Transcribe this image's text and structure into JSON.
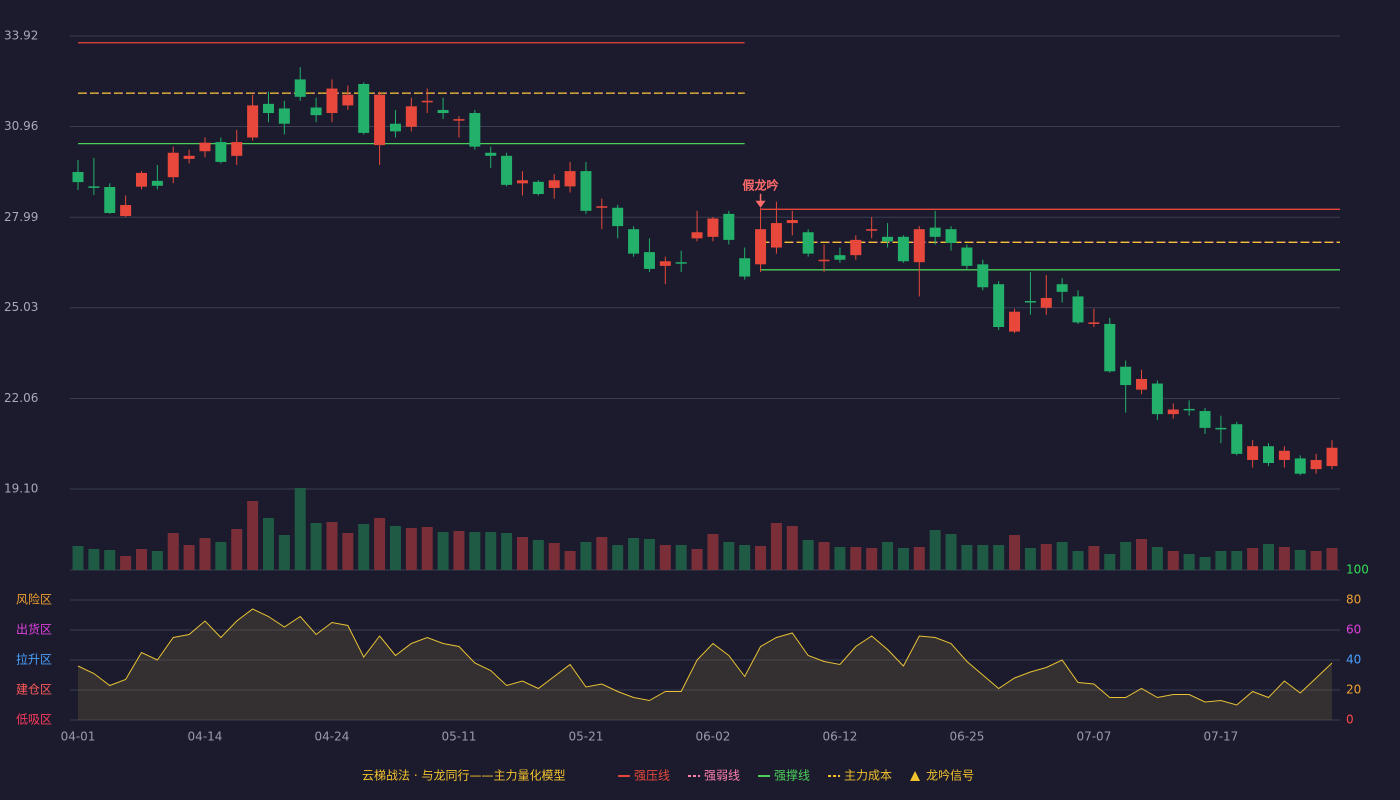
{
  "chart_data": {
    "type": "candlestick",
    "categories": [
      "04-01",
      null,
      null,
      null,
      null,
      null,
      null,
      null,
      "04-14",
      null,
      null,
      null,
      null,
      null,
      null,
      null,
      "04-24",
      null,
      null,
      null,
      null,
      null,
      null,
      null,
      "05-11",
      null,
      null,
      null,
      null,
      null,
      null,
      null,
      "05-21",
      null,
      null,
      null,
      null,
      null,
      null,
      null,
      "06-02",
      null,
      null,
      null,
      null,
      null,
      null,
      null,
      "06-12",
      null,
      null,
      null,
      null,
      null,
      null,
      null,
      "06-25",
      null,
      null,
      null,
      null,
      null,
      null,
      null,
      "07-07",
      null,
      null,
      null,
      null,
      null,
      null,
      null,
      "07-17",
      null,
      null,
      null,
      null,
      null,
      null,
      null
    ],
    "open": [
      29.47,
      29.0,
      28.98,
      28.03,
      28.99,
      29.18,
      29.3,
      29.9,
      30.15,
      30.45,
      30.0,
      30.6,
      31.7,
      31.55,
      32.5,
      31.58,
      31.4,
      31.65,
      32.35,
      30.35,
      31.05,
      30.95,
      31.75,
      31.5,
      31.15,
      31.4,
      30.1,
      30.0,
      29.1,
      29.15,
      28.95,
      29.0,
      29.5,
      28.3,
      28.3,
      27.6,
      26.85,
      26.4,
      26.52,
      27.3,
      27.35,
      28.1,
      26.65,
      26.45,
      27.0,
      27.8,
      27.5,
      26.58,
      26.75,
      26.75,
      27.55,
      27.35,
      27.35,
      26.52,
      27.65,
      27.6,
      27.0,
      26.45,
      25.8,
      24.25,
      25.25,
      25.03,
      25.8,
      25.4,
      24.5,
      24.5,
      23.1,
      22.35,
      22.55,
      21.55,
      21.72,
      21.65,
      21.1,
      21.22,
      20.05,
      20.5,
      20.05,
      20.1,
      19.75,
      19.85
    ],
    "close": [
      29.14,
      28.97,
      28.13,
      28.39,
      29.44,
      29.02,
      30.1,
      30.0,
      30.43,
      29.8,
      30.45,
      31.65,
      31.4,
      31.05,
      31.93,
      31.33,
      32.2,
      32.0,
      30.75,
      32.0,
      30.8,
      31.62,
      31.8,
      31.4,
      31.2,
      30.3,
      30.0,
      29.05,
      29.2,
      28.75,
      29.2,
      29.5,
      28.2,
      28.35,
      27.7,
      26.8,
      26.3,
      26.55,
      26.5,
      27.5,
      27.95,
      27.25,
      26.05,
      27.6,
      27.8,
      27.9,
      26.8,
      26.6,
      26.6,
      27.25,
      27.6,
      27.2,
      26.55,
      27.6,
      27.35,
      27.15,
      26.4,
      25.7,
      24.4,
      24.9,
      25.22,
      25.35,
      25.55,
      24.55,
      24.55,
      22.95,
      22.5,
      22.7,
      21.55,
      21.7,
      21.68,
      21.1,
      21.08,
      20.25,
      20.5,
      19.95,
      20.35,
      19.6,
      20.05,
      20.45
    ],
    "high": [
      29.86,
      29.93,
      29.1,
      28.7,
      29.5,
      29.7,
      30.3,
      30.2,
      30.6,
      30.6,
      30.85,
      32.0,
      32.1,
      31.8,
      32.9,
      31.9,
      32.5,
      32.3,
      32.4,
      32.1,
      31.5,
      31.9,
      32.2,
      31.9,
      31.3,
      31.5,
      30.3,
      30.1,
      29.5,
      29.2,
      29.4,
      29.8,
      29.8,
      28.6,
      28.4,
      27.7,
      27.3,
      26.7,
      26.9,
      28.2,
      28.0,
      28.2,
      27.0,
      28.3,
      28.5,
      28.2,
      27.6,
      27.1,
      27.0,
      27.4,
      28.0,
      27.8,
      27.4,
      27.7,
      28.2,
      27.7,
      27.1,
      26.6,
      25.9,
      25.0,
      26.2,
      26.1,
      26.0,
      25.6,
      25.0,
      24.7,
      23.3,
      23.0,
      22.65,
      21.9,
      22.0,
      21.75,
      21.5,
      21.3,
      20.7,
      20.6,
      20.5,
      20.2,
      20.25,
      20.7
    ],
    "low": [
      28.88,
      28.72,
      28.1,
      28.0,
      28.9,
      28.9,
      29.1,
      29.75,
      29.95,
      29.75,
      29.7,
      30.5,
      31.1,
      30.7,
      31.8,
      31.1,
      31.1,
      31.5,
      30.7,
      29.7,
      30.6,
      30.8,
      31.4,
      31.2,
      30.6,
      30.2,
      29.6,
      29.0,
      28.7,
      28.7,
      28.6,
      28.8,
      28.1,
      27.6,
      27.3,
      26.7,
      26.2,
      25.8,
      26.2,
      27.2,
      27.2,
      27.1,
      25.95,
      26.2,
      26.8,
      27.4,
      26.7,
      26.2,
      26.5,
      26.6,
      27.3,
      27.0,
      26.5,
      25.4,
      27.1,
      26.9,
      26.3,
      25.6,
      24.3,
      24.2,
      24.8,
      24.8,
      25.2,
      24.5,
      24.4,
      22.9,
      21.6,
      22.2,
      21.35,
      21.4,
      21.5,
      20.9,
      20.6,
      20.2,
      19.8,
      19.85,
      19.8,
      19.55,
      19.6,
      19.75
    ],
    "up_color": "#e8483b",
    "down_color": "#22b06a",
    "ylim": [
      19.1,
      33.92
    ],
    "yticks": [
      {
        "value": 19.1,
        "label": "19.10"
      },
      22.06,
      25.03,
      27.99,
      30.96,
      33.92
    ],
    "grid": true,
    "volume": [
      24,
      21,
      20,
      14,
      21,
      19,
      37,
      25,
      32,
      28,
      41,
      69,
      52,
      35,
      82,
      47,
      48,
      37,
      46,
      52,
      44,
      42,
      43,
      38,
      39,
      38,
      38,
      37,
      33,
      30,
      27,
      19,
      28,
      33,
      25,
      32,
      31,
      25,
      25,
      21,
      36,
      28,
      25,
      24,
      47,
      44,
      30,
      28,
      23,
      23,
      22,
      28,
      22,
      23,
      40,
      36,
      25,
      25,
      25,
      35,
      22,
      26,
      28,
      19,
      24,
      16,
      28,
      31,
      23,
      19,
      16,
      13,
      19,
      19,
      22,
      26,
      23,
      20,
      19,
      22
    ],
    "volume_up_color": "#7a2f38",
    "volume_down_color": "#1f5a45",
    "levels": [
      {
        "name": "强压线",
        "color": "#e8483b",
        "style": "solid",
        "segments": [
          {
            "start": 0,
            "end": 42,
            "value": 33.7
          },
          {
            "start": 43,
            "end": 79,
            "value": 28.25
          }
        ]
      },
      {
        "name": "强弱线",
        "color": "#ff7fae",
        "style": "dotted",
        "segments": [
          {
            "start": 0,
            "end": 42,
            "value": 32.05
          },
          {
            "start": 43,
            "end": 79,
            "value": 27.17
          }
        ]
      },
      {
        "name": "强撑线",
        "color": "#4ccf5a",
        "style": "solid",
        "segments": [
          {
            "start": 0,
            "end": 42,
            "value": 30.4
          },
          {
            "start": 43,
            "end": 79,
            "value": 26.27
          }
        ]
      },
      {
        "name": "主力成本",
        "color": "#f2c12e",
        "style": "dashed",
        "segments": [
          {
            "start": 0,
            "end": 42,
            "value": 32.05
          },
          {
            "start": 43,
            "end": 79,
            "value": 27.17
          }
        ]
      }
    ],
    "signal": {
      "name": "龙吟信号",
      "color": "#f2c12e",
      "annotations": [
        {
          "index": 43,
          "text": "假龙吟",
          "color": "#ff6b6b"
        }
      ]
    },
    "oscillator": {
      "values": [
        36,
        31,
        23,
        27,
        45,
        40,
        55,
        57,
        66,
        55,
        66,
        74,
        69,
        62,
        69,
        57,
        65,
        63,
        42,
        56,
        43,
        51,
        55,
        51,
        49,
        38,
        33,
        23,
        26,
        21,
        29,
        37,
        22,
        24,
        19,
        15,
        13,
        19,
        19,
        40,
        51,
        43,
        29,
        49,
        55,
        58,
        43,
        39,
        37,
        49,
        56,
        47,
        36,
        56,
        55,
        51,
        39,
        30,
        21,
        28,
        32,
        35,
        40,
        25,
        24,
        15,
        15,
        21,
        15,
        17,
        17,
        12,
        13,
        10,
        19,
        15,
        26,
        18,
        28,
        38
      ],
      "color": "#e8c234",
      "fill": "rgba(120,100,60,0.28)",
      "ylim": [
        0,
        100
      ],
      "yticks": [
        {
          "value": 0,
          "color": "#ff4a4a"
        },
        {
          "value": 20,
          "color": "#f0a030"
        },
        {
          "value": 40,
          "color": "#4aa0ff"
        },
        {
          "value": 60,
          "color": "#e040e0"
        },
        {
          "value": 80,
          "color": "#f0a030"
        },
        {
          "value": 100,
          "color": "#33dd55"
        }
      ],
      "zones": [
        {
          "label": "风险区",
          "value": 80,
          "color": "#f0a030"
        },
        {
          "label": "出货区",
          "value": 60,
          "color": "#e040e0"
        },
        {
          "label": "拉升区",
          "value": 40,
          "color": "#4aa0ff"
        },
        {
          "label": "建仓区",
          "value": 20,
          "color": "#ff5a5a"
        },
        {
          "label": "低吸区",
          "value": 0,
          "color": "#ff3b5c"
        }
      ]
    },
    "model_title": "云梯战法 · 与龙同行——主力量化模型",
    "model_title_color": "#f2c12e"
  }
}
